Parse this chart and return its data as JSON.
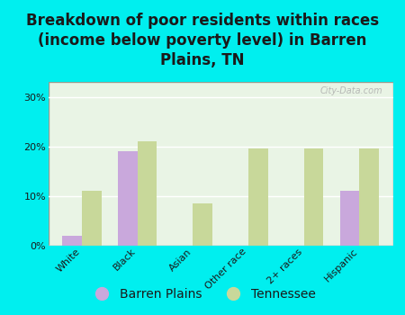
{
  "title": "Breakdown of poor residents within races\n(income below poverty level) in Barren\nPlains, TN",
  "categories": [
    "White",
    "Black",
    "Asian",
    "Other race",
    "2+ races",
    "Hispanic"
  ],
  "barren_plains": [
    2.0,
    19.0,
    0.0,
    0.0,
    0.0,
    11.0
  ],
  "tennessee": [
    11.0,
    21.0,
    8.5,
    19.5,
    19.5,
    19.5
  ],
  "barren_color": "#c9a8dc",
  "tennessee_color": "#c8d89a",
  "bg_color": "#00efef",
  "plot_bg": "#deefd8",
  "yticks": [
    0,
    10,
    20,
    30
  ],
  "ylim": [
    0,
    33
  ],
  "bar_width": 0.35,
  "title_fontsize": 12,
  "tick_fontsize": 8,
  "legend_fontsize": 10,
  "watermark": "City-Data.com"
}
